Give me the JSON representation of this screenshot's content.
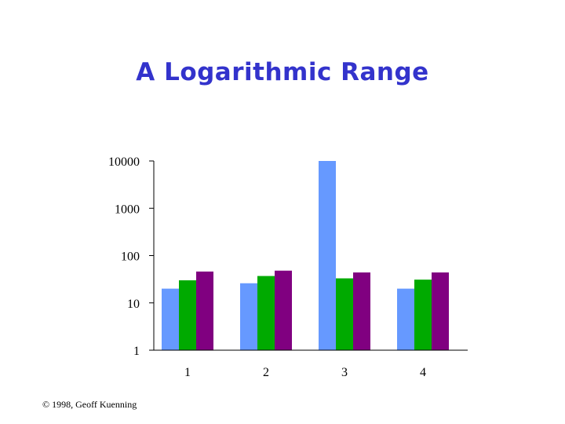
{
  "title": "A Logarithmic Range",
  "footer": "© 1998, Geoff Kuenning",
  "colors": {
    "series1": "#6699ff",
    "series2": "#00aa00",
    "series3": "#800080",
    "title": "#3333cc"
  },
  "chart_data": {
    "type": "bar",
    "title": "A Logarithmic Range",
    "xlabel": "",
    "ylabel": "",
    "yscale": "log",
    "ylim": [
      1,
      10000
    ],
    "categories": [
      "1",
      "2",
      "3",
      "4"
    ],
    "ytick_labels": [
      "1",
      "10",
      "100",
      "1000",
      "10000"
    ],
    "yticks": [
      1,
      10,
      100,
      1000,
      10000
    ],
    "series": [
      {
        "values": [
          20,
          26,
          10000,
          20
        ]
      },
      {
        "values": [
          30,
          37,
          33,
          31
        ]
      },
      {
        "values": [
          46,
          48,
          44,
          44
        ]
      }
    ],
    "grid": false,
    "legend": "none"
  }
}
